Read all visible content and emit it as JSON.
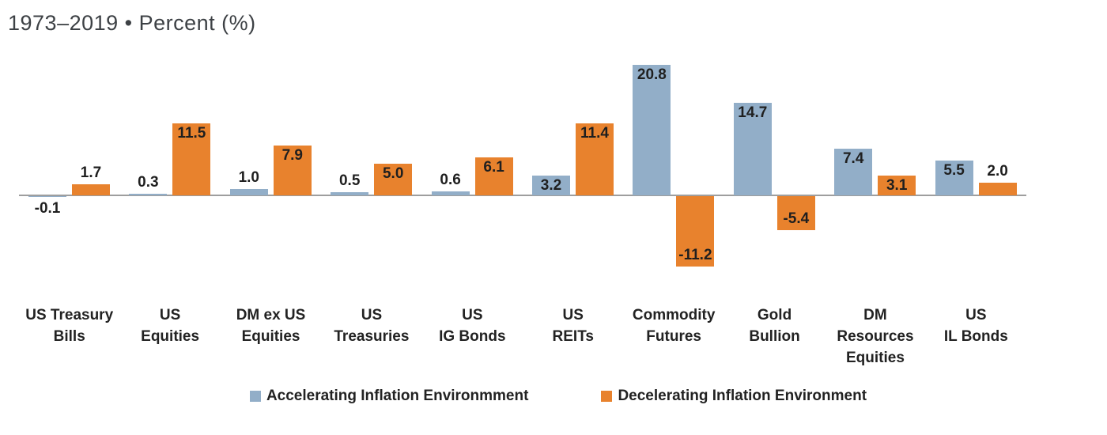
{
  "header": {
    "title": "1973–2019 • Percent (%)"
  },
  "chart_data": {
    "type": "bar",
    "title": "1973–2019 • Percent (%)",
    "xlabel": "",
    "ylabel": "Percent (%)",
    "ylim": [
      -14,
      22
    ],
    "grid": false,
    "legend_position": "bottom",
    "value_labels": true,
    "categories": [
      "US Treasury Bills",
      "US Equities",
      "DM ex US Equities",
      "US Treasuries",
      "US IG Bonds",
      "US REITs",
      "Commodity Futures",
      "Gold Bullion",
      "DM Resources Equities",
      "US IL Bonds"
    ],
    "category_lines": [
      [
        "US Treasury",
        "Bills"
      ],
      [
        "US",
        "Equities"
      ],
      [
        "DM ex US",
        "Equities"
      ],
      [
        "US",
        "Treasuries"
      ],
      [
        "US",
        "IG Bonds"
      ],
      [
        "US",
        "REITs"
      ],
      [
        "Commodity",
        "Futures"
      ],
      [
        "Gold",
        "Bullion"
      ],
      [
        "DM",
        "Resources",
        "Equities"
      ],
      [
        "US",
        "IL Bonds"
      ]
    ],
    "series": [
      {
        "name": "Accelerating Inflation Environmment",
        "color": "#92AEC8",
        "values": [
          -0.1,
          0.3,
          1.0,
          0.5,
          0.6,
          3.2,
          20.8,
          14.7,
          7.4,
          5.5
        ]
      },
      {
        "name": "Decelerating Inflation Environment",
        "color": "#E8822D",
        "values": [
          1.7,
          11.5,
          7.9,
          5.0,
          6.1,
          11.4,
          -11.2,
          -5.4,
          3.1,
          2.0
        ]
      }
    ],
    "axis_color": "#9e9e9e",
    "label_color": "#1f1f1f"
  }
}
